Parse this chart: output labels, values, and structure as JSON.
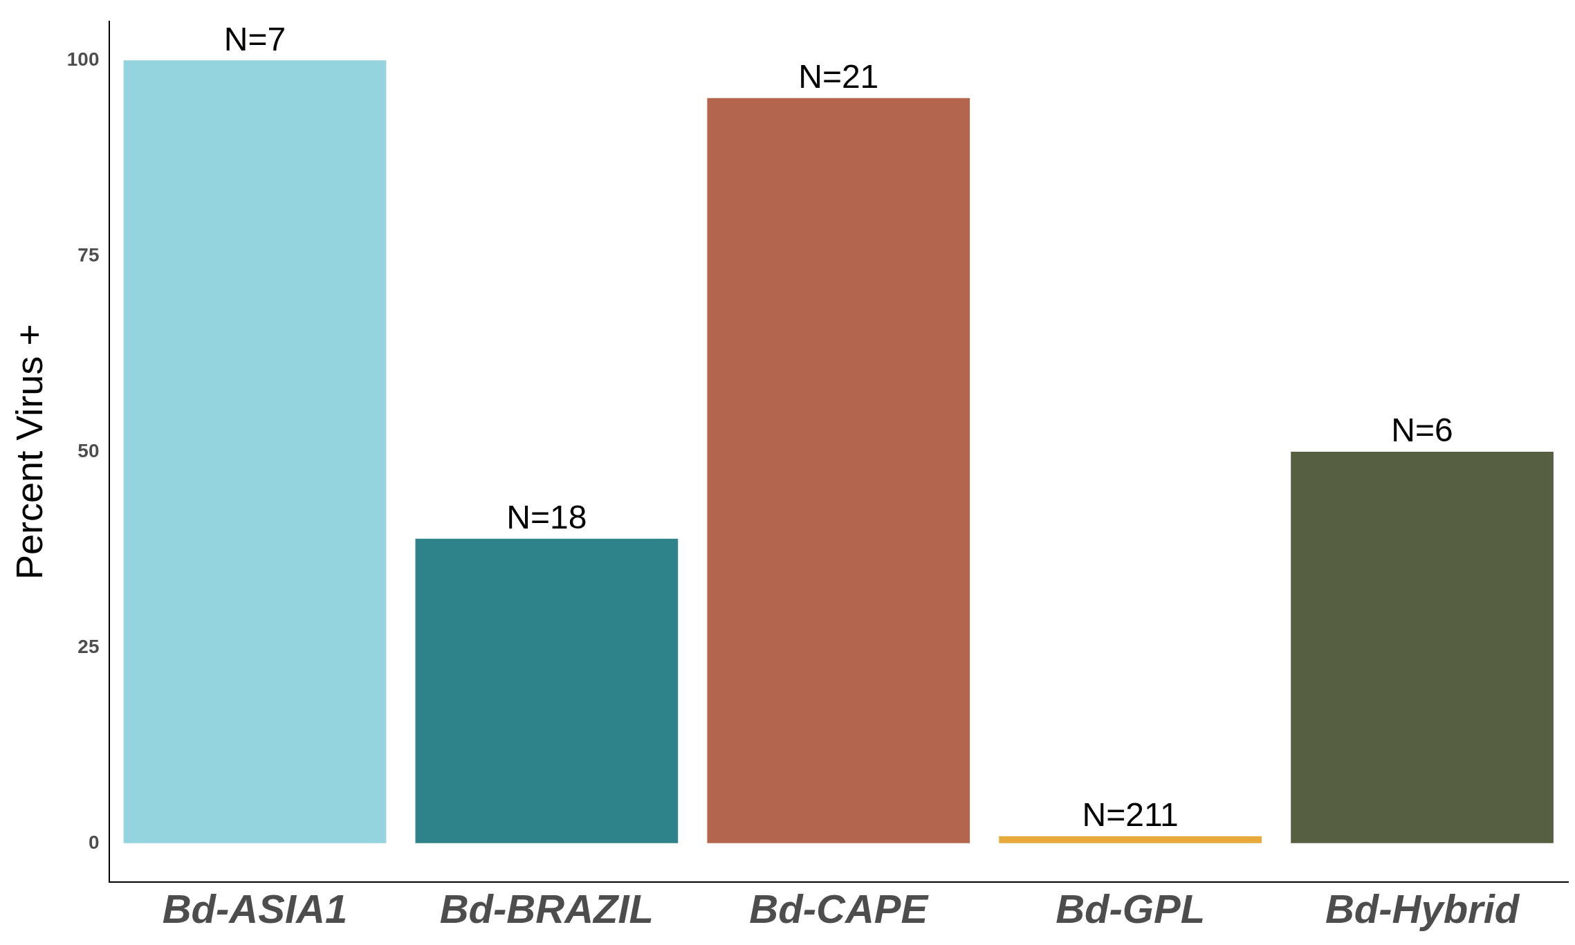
{
  "chart_data": {
    "type": "bar",
    "ylabel": "Percent Virus +",
    "categories": [
      "Bd-ASIA1",
      "Bd-BRAZIL",
      "Bd-CAPE",
      "Bd-GPL",
      "Bd-Hybrid"
    ],
    "values": [
      100,
      38.9,
      95.2,
      0.9,
      50
    ],
    "colors": [
      "#94d4de",
      "#2e8289",
      "#b3664d",
      "#e6a93a",
      "#566040"
    ],
    "annotations": [
      {
        "text": "N=7",
        "x": "Bd-ASIA1",
        "y": 100
      },
      {
        "text": "N=18",
        "x": "Bd-BRAZIL",
        "y": 38.9
      },
      {
        "text": "N=21",
        "x": "Bd-CAPE",
        "y": 95.2
      },
      {
        "text": "N=211",
        "x": "Bd-GPL",
        "y": 0.9
      },
      {
        "text": "N=6",
        "x": "Bd-Hybrid",
        "y": 50
      }
    ],
    "ylim": [
      -5,
      105
    ],
    "yticks": [
      0,
      25,
      50,
      75,
      100
    ],
    "grid": false,
    "legend": false
  }
}
